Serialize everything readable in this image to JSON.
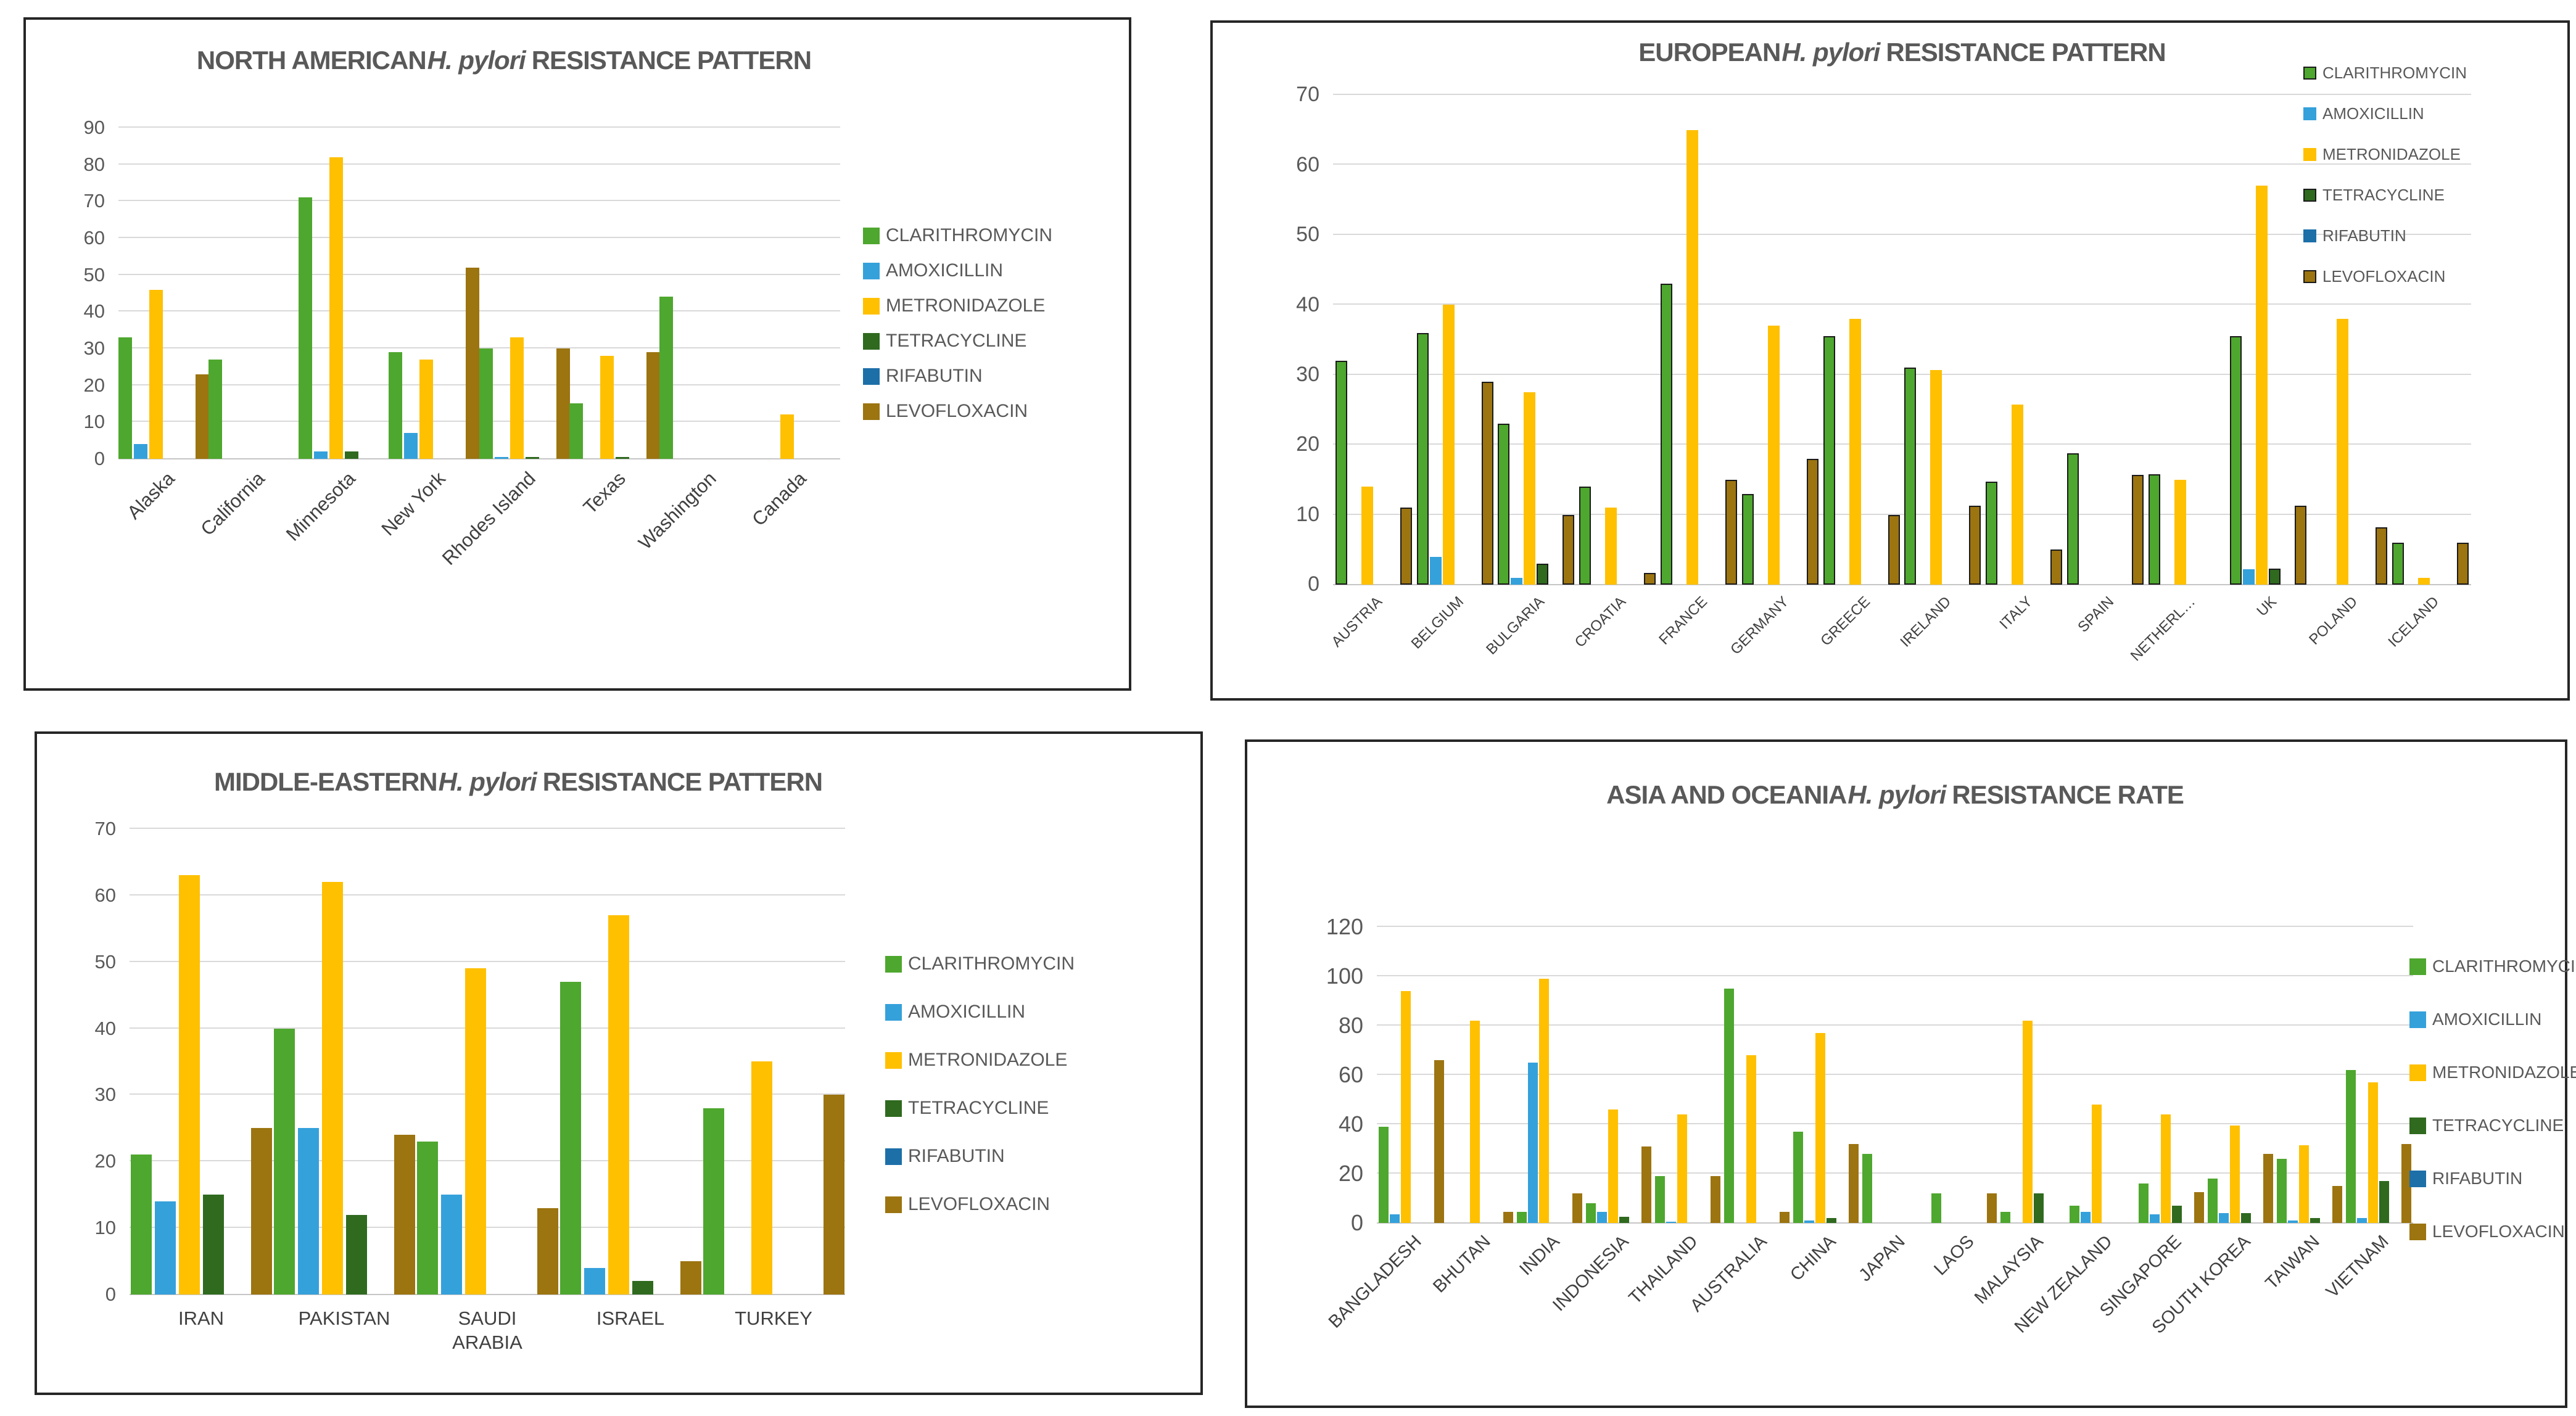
{
  "colors": {
    "CLARITHROMYCIN": "#4EA72E",
    "AMOXICILLIN": "#35A1DB",
    "METRONIDAZOLE": "#FFC000",
    "TETRACYCLINE": "#2F6A1F",
    "RIFABUTIN": "#1D6FA8",
    "LEVOFLOXACIN": "#9C7410"
  },
  "chart_data": [
    {
      "id": "north-american",
      "type": "bar",
      "title": {
        "prefix": "NORTH AMERICAN",
        "italic": "H. pylori",
        "suffix": "RESISTANCE PATTERN"
      },
      "ylim": [
        0,
        90
      ],
      "yticks": [
        0,
        10,
        20,
        30,
        40,
        50,
        60,
        70,
        80,
        90
      ],
      "grid": true,
      "legend_position": "right-middle",
      "categories": [
        "Alaska",
        "California",
        "Minnesota",
        "New York",
        "Rhodes Island",
        "Texas",
        "Washington",
        "Canada"
      ],
      "series": [
        {
          "name": "CLARITHROMYCIN",
          "values": [
            33,
            27,
            71,
            29,
            30,
            15,
            44,
            0
          ]
        },
        {
          "name": "AMOXICILLIN",
          "values": [
            4,
            0,
            2,
            7,
            0.5,
            0,
            0,
            0
          ]
        },
        {
          "name": "METRONIDAZOLE",
          "values": [
            46,
            0,
            82,
            27,
            33,
            28,
            0,
            12
          ]
        },
        {
          "name": "TETRACYCLINE",
          "values": [
            0,
            0,
            2,
            0,
            0.5,
            0.5,
            0,
            0
          ]
        },
        {
          "name": "RIFABUTIN",
          "values": [
            0,
            0,
            0,
            0,
            0,
            0,
            0,
            0
          ]
        },
        {
          "name": "LEVOFLOXACIN",
          "values": [
            23,
            0,
            0,
            52,
            30,
            29,
            0,
            0
          ]
        }
      ]
    },
    {
      "id": "european",
      "type": "bar",
      "title": {
        "prefix": "EUROPEAN",
        "italic": "H. pylori",
        "suffix": "RESISTANCE PATTERN"
      },
      "ylim": [
        0,
        70
      ],
      "yticks": [
        0,
        10,
        20,
        30,
        40,
        50,
        60,
        70
      ],
      "grid": true,
      "legend_position": "top-right",
      "categories": [
        "AUSTRIA",
        "BELGIUM",
        "BULGARIA",
        "CROATIA",
        "FRANCE",
        "GERMANY",
        "GREECE",
        "IRELAND",
        "ITALY",
        "SPAIN",
        "NETHERL…",
        "UK",
        "POLAND",
        "ICELAND"
      ],
      "series": [
        {
          "name": "CLARITHROMYCIN",
          "values": [
            32,
            36,
            23,
            14,
            43,
            13,
            35.5,
            31,
            14.7,
            18.8,
            15.8,
            35.5,
            0,
            6
          ]
        },
        {
          "name": "AMOXICILLIN",
          "values": [
            0,
            4,
            1,
            0,
            0,
            0,
            0,
            0,
            0,
            0,
            0,
            2.2,
            0,
            0
          ]
        },
        {
          "name": "METRONIDAZOLE",
          "values": [
            14,
            40,
            27.5,
            11,
            65,
            37,
            38,
            30.7,
            25.7,
            0,
            15,
            57,
            38,
            1
          ]
        },
        {
          "name": "TETRACYCLINE",
          "values": [
            0,
            0,
            3,
            0,
            0,
            0,
            0,
            0,
            0,
            0,
            0,
            2.3,
            0,
            0
          ]
        },
        {
          "name": "RIFABUTIN",
          "values": [
            0,
            0,
            0,
            0,
            0,
            0,
            0,
            0,
            0,
            0,
            0,
            0,
            0,
            0
          ]
        },
        {
          "name": "LEVOFLOXACIN",
          "values": [
            11,
            29,
            10,
            1.7,
            15,
            18,
            10,
            11.3,
            5,
            15.7,
            0,
            11.3,
            8.2,
            6
          ]
        }
      ]
    },
    {
      "id": "middle-eastern",
      "type": "bar",
      "title": {
        "prefix": "MIDDLE-EASTERN",
        "italic": "H. pylori",
        "suffix": "RESISTANCE PATTERN"
      },
      "ylim": [
        0,
        70
      ],
      "yticks": [
        0,
        10,
        20,
        30,
        40,
        50,
        60,
        70
      ],
      "grid": true,
      "legend_position": "right-middle",
      "categories": [
        "IRAN",
        "PAKISTAN",
        "SAUDI ARABIA",
        "ISRAEL",
        "TURKEY"
      ],
      "series": [
        {
          "name": "CLARITHROMYCIN",
          "values": [
            21,
            40,
            23,
            47,
            28
          ]
        },
        {
          "name": "AMOXICILLIN",
          "values": [
            14,
            25,
            15,
            4,
            0
          ]
        },
        {
          "name": "METRONIDAZOLE",
          "values": [
            63,
            62,
            49,
            57,
            35
          ]
        },
        {
          "name": "TETRACYCLINE",
          "values": [
            15,
            12,
            0,
            2,
            0
          ]
        },
        {
          "name": "RIFABUTIN",
          "values": [
            0,
            0,
            0,
            0,
            0
          ]
        },
        {
          "name": "LEVOFLOXACIN",
          "values": [
            25,
            24,
            13,
            5,
            30
          ]
        }
      ]
    },
    {
      "id": "asia-oceania",
      "type": "bar",
      "title": {
        "prefix": "ASIA AND OCEANIA",
        "italic": "H. pylori",
        "suffix": "RESISTANCE RATE"
      },
      "ylim": [
        0,
        120
      ],
      "yticks": [
        0,
        20,
        40,
        60,
        80,
        100,
        120
      ],
      "grid": true,
      "legend_position": "right-middle",
      "categories": [
        "BANGLADESH",
        "BHUTAN",
        "INDIA",
        "INDONESIA",
        "THAILAND",
        "AUSTRALIA",
        "CHINA",
        "JAPAN",
        "LAOS",
        "MALAYSIA",
        "NEW ZEALAND",
        "SINGAPORE",
        "SOUTH KOREA",
        "TAIWAN",
        "VIETNAM"
      ],
      "series": [
        {
          "name": "CLARITHROMYCIN",
          "values": [
            39,
            0,
            4.5,
            8,
            19,
            95,
            37,
            28,
            12,
            4.5,
            7,
            16,
            18,
            26,
            62
          ]
        },
        {
          "name": "AMOXICILLIN",
          "values": [
            3.5,
            0,
            65,
            4.5,
            0.5,
            0,
            1,
            0,
            0,
            0,
            4.5,
            3.5,
            4,
            1,
            2
          ]
        },
        {
          "name": "METRONIDAZOLE",
          "values": [
            94,
            82,
            99,
            46,
            44,
            68,
            77,
            0,
            0,
            82,
            48,
            44,
            39.5,
            31.5,
            57
          ]
        },
        {
          "name": "TETRACYCLINE",
          "values": [
            0,
            0,
            0,
            2.5,
            0,
            0,
            2,
            0,
            0,
            12,
            0,
            7,
            4,
            2,
            17
          ]
        },
        {
          "name": "RIFABUTIN",
          "values": [
            0,
            0,
            0,
            0,
            0,
            0,
            0,
            0,
            0,
            0,
            0,
            0,
            0,
            0,
            0
          ]
        },
        {
          "name": "LEVOFLOXACIN",
          "values": [
            66,
            4.5,
            12,
            31,
            19,
            4.5,
            32,
            0,
            12,
            0,
            0,
            12.5,
            28,
            15,
            32
          ]
        }
      ]
    }
  ]
}
